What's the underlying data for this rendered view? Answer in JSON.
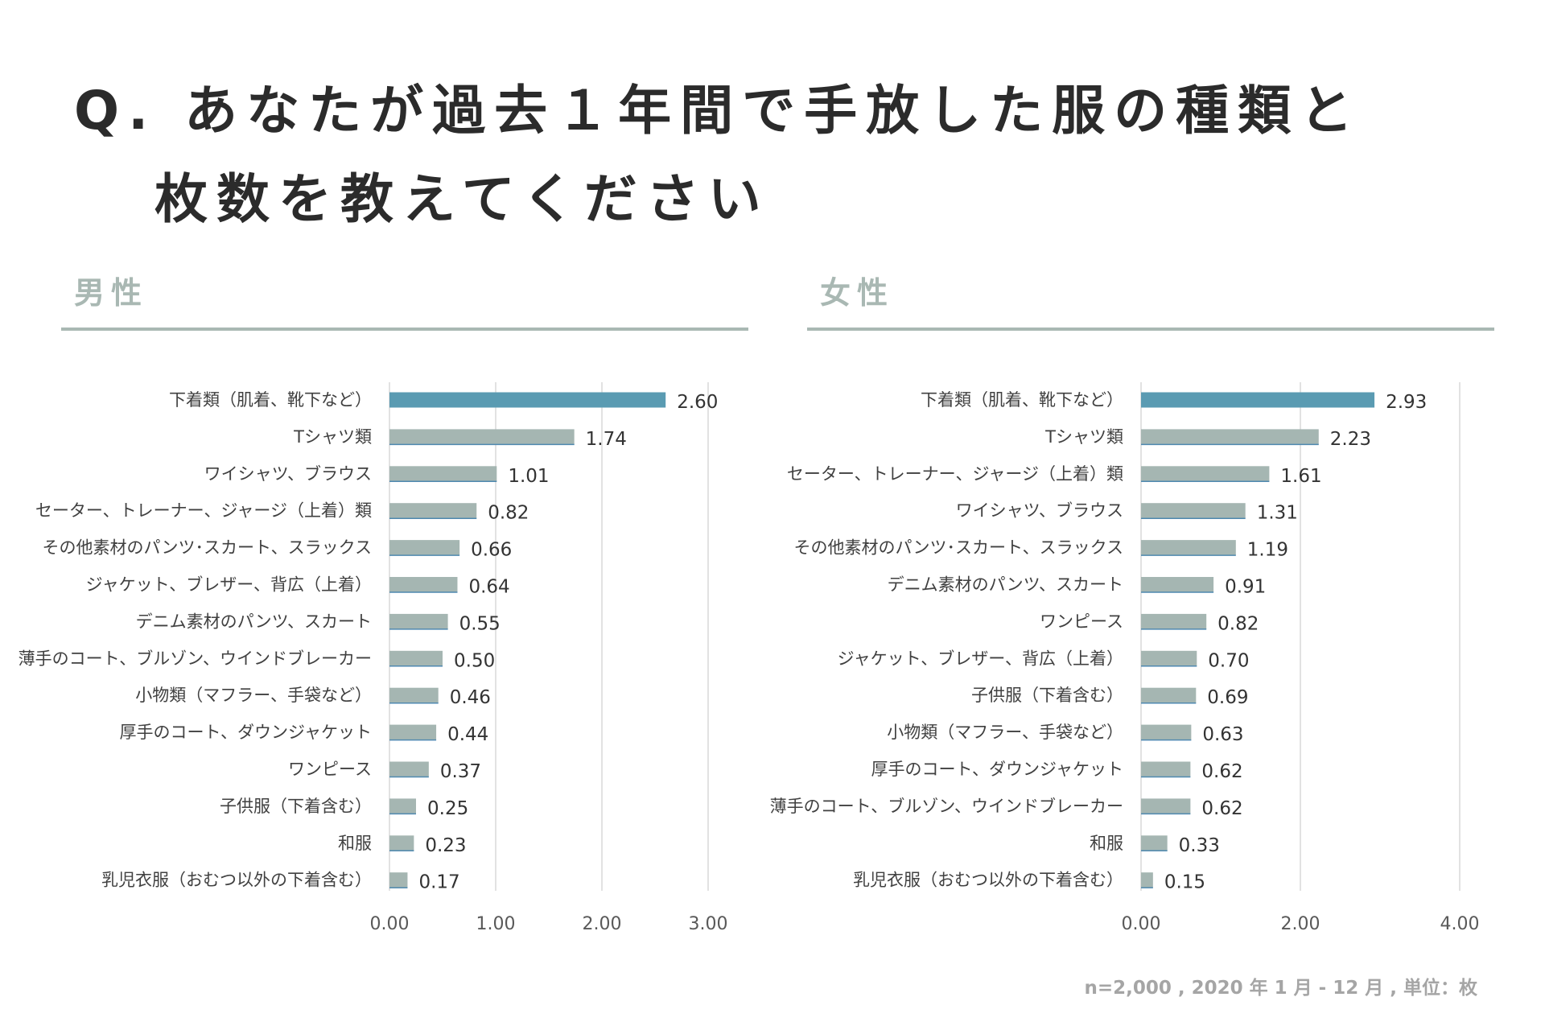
{
  "title": {
    "line1": "Q. あなたが過去１年間で手放した服の種類と",
    "line2": "枚数を教えてください"
  },
  "footnote": "n=2,000 , 2020 年 1 月 - 12 月 , 単位：枚",
  "colors": {
    "highlight": "#5a9bb2",
    "bar": "#a5b6b2",
    "grid": "#d9d9d9",
    "section": "#a9b8b3"
  },
  "chart_data": [
    {
      "id": "male",
      "type": "bar",
      "orientation": "horizontal",
      "title": "男性",
      "xlim": [
        0,
        3
      ],
      "ticks": [
        0,
        1,
        2,
        3
      ],
      "tick_labels": [
        "0.00",
        "1.00",
        "2.00",
        "3.00"
      ],
      "grid": true,
      "categories": [
        "下着類（肌着、靴下など）",
        "Tシャツ類",
        "ワイシャツ、ブラウス",
        "セーター、トレーナー、ジャージ（上着）類",
        "その他素材のパンツ･スカート、スラックス",
        "ジャケット、ブレザー、背広（上着）",
        "デニム素材のパンツ、スカート",
        "薄手のコート、ブルゾン、ウインドブレーカー",
        "小物類（マフラー、手袋など）",
        "厚手のコート、ダウンジャケット",
        "ワンピース",
        "子供服（下着含む）",
        "和服",
        "乳児衣服（おむつ以外の下着含む）"
      ],
      "values": [
        2.6,
        1.74,
        1.01,
        0.82,
        0.66,
        0.64,
        0.55,
        0.5,
        0.46,
        0.44,
        0.37,
        0.25,
        0.23,
        0.17
      ],
      "value_labels": [
        "2.60",
        "1.74",
        "1.01",
        "0.82",
        "0.66",
        "0.64",
        "0.55",
        "0.50",
        "0.46",
        "0.44",
        "0.37",
        "0.25",
        "0.23",
        "0.17"
      ]
    },
    {
      "id": "female",
      "type": "bar",
      "orientation": "horizontal",
      "title": "女性",
      "xlim": [
        0,
        4
      ],
      "ticks": [
        0,
        2,
        4
      ],
      "tick_labels": [
        "0.00",
        "2.00",
        "4.00"
      ],
      "grid": true,
      "categories": [
        "下着類（肌着、靴下など）",
        "Tシャツ類",
        "セーター、トレーナー、ジャージ（上着）類",
        "ワイシャツ、ブラウス",
        "その他素材のパンツ･スカート、スラックス",
        "デニム素材のパンツ、スカート",
        "ワンピース",
        "ジャケット、ブレザー、背広（上着）",
        "子供服（下着含む）",
        "小物類（マフラー、手袋など）",
        "厚手のコート、ダウンジャケット",
        "薄手のコート、ブルゾン、ウインドブレーカー",
        "和服",
        "乳児衣服（おむつ以外の下着含む）"
      ],
      "values": [
        2.93,
        2.23,
        1.61,
        1.31,
        1.19,
        0.91,
        0.82,
        0.7,
        0.69,
        0.63,
        0.62,
        0.62,
        0.33,
        0.15
      ],
      "value_labels": [
        "2.93",
        "2.23",
        "1.61",
        "1.31",
        "1.19",
        "0.91",
        "0.82",
        "0.70",
        "0.69",
        "0.63",
        "0.62",
        "0.62",
        "0.33",
        "0.15"
      ]
    }
  ]
}
